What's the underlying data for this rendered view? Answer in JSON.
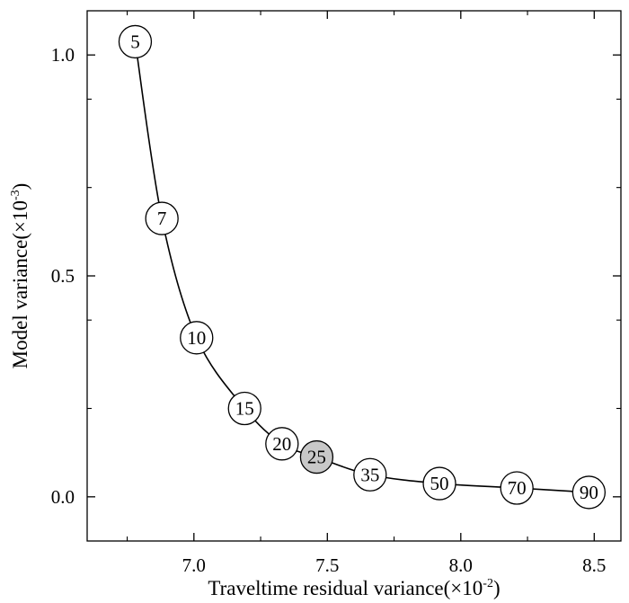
{
  "chart_data": {
    "type": "line",
    "title": "",
    "xlabel": {
      "text": "Traveltime residual variance(×10",
      "exp": "-2",
      "close": ")"
    },
    "ylabel": {
      "text": "Model variance(×10",
      "exp": "-3",
      "close": ")"
    },
    "xlim": [
      6.6,
      8.6
    ],
    "ylim": [
      -0.1,
      1.1
    ],
    "x_ticks": [
      {
        "v": 7.0,
        "label": "7.0"
      },
      {
        "v": 7.5,
        "label": "7.5"
      },
      {
        "v": 8.0,
        "label": "8.0"
      },
      {
        "v": 8.5,
        "label": "8.5"
      }
    ],
    "x_minor_ticks": [
      6.75,
      7.25,
      7.75,
      8.25
    ],
    "y_ticks": [
      {
        "v": 0.0,
        "label": "0.0"
      },
      {
        "v": 0.5,
        "label": "0.5"
      },
      {
        "v": 1.0,
        "label": "1.0"
      }
    ],
    "y_minor_ticks": [
      0.2,
      0.4,
      0.7,
      0.9
    ],
    "grid": false,
    "highlight_color": "#c8c8c8",
    "points": [
      {
        "x": 6.78,
        "y": 1.03,
        "label": "5"
      },
      {
        "x": 6.88,
        "y": 0.63,
        "label": "7"
      },
      {
        "x": 7.01,
        "y": 0.36,
        "label": "10"
      },
      {
        "x": 7.19,
        "y": 0.2,
        "label": "15"
      },
      {
        "x": 7.33,
        "y": 0.12,
        "label": "20"
      },
      {
        "x": 7.46,
        "y": 0.09,
        "label": "25",
        "highlight": true
      },
      {
        "x": 7.66,
        "y": 0.05,
        "label": "35"
      },
      {
        "x": 7.92,
        "y": 0.03,
        "label": "50"
      },
      {
        "x": 8.21,
        "y": 0.02,
        "label": "70"
      },
      {
        "x": 8.48,
        "y": 0.01,
        "label": "90"
      }
    ]
  }
}
